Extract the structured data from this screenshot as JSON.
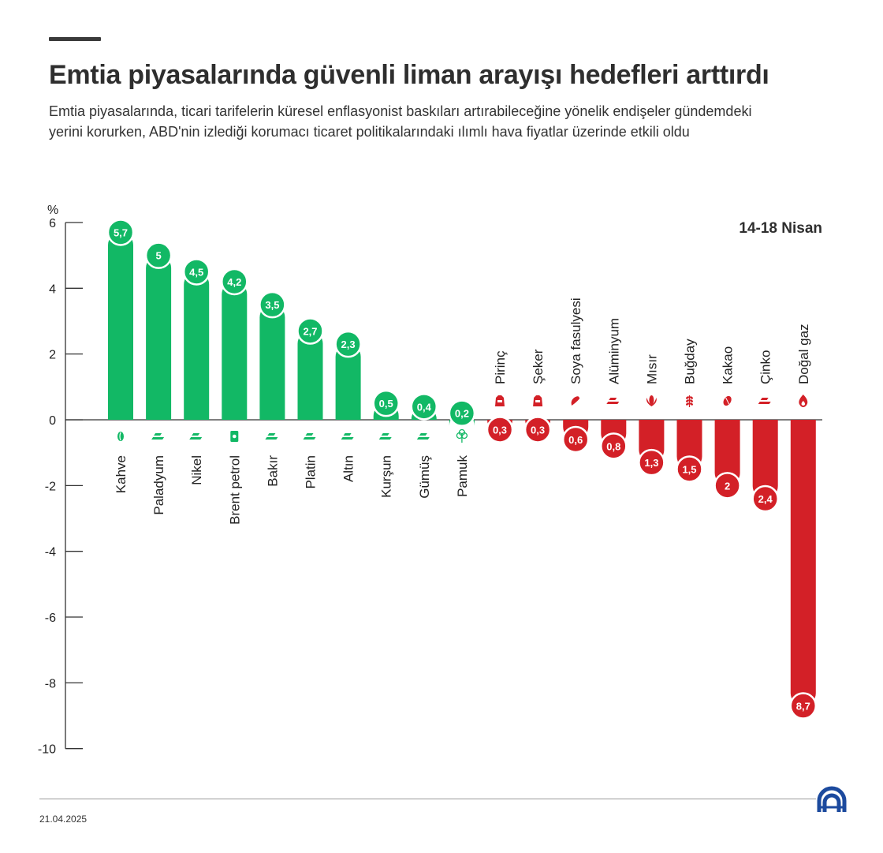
{
  "header": {
    "title": "Emtia piyasalarında güvenli liman arayışı hedefleri arttırdı",
    "subtitle": "Emtia piyasalarında, ticari tarifelerin küresel enflasyonist baskıları artırabileceğine yönelik endişeler gündemdeki yerini korurken, ABD'nin izlediği korumacı ticaret politikalarındaki ılımlı hava fiyatlar üzerinde etkili oldu"
  },
  "chart_data": {
    "type": "bar",
    "title": "Emtia piyasalarında güvenli liman arayışı hedefleri arttırdı",
    "period_label": "14-18 Nisan",
    "ylabel": "%",
    "ylim": [
      -10,
      6
    ],
    "yticks": [
      6,
      4,
      2,
      0,
      -2,
      -4,
      -6,
      -8,
      -10
    ],
    "grid": false,
    "colors": {
      "positive": "#12b865",
      "negative": "#d32027"
    },
    "categories": [
      "Kahve",
      "Paladyum",
      "Nikel",
      "Brent petrol",
      "Bakır",
      "Platin",
      "Altın",
      "Kurşun",
      "Gümüş",
      "Pamuk",
      "Pirinç",
      "Şeker",
      "Soya fasulyesi",
      "Alüminyum",
      "Mısır",
      "Buğday",
      "Kakao",
      "Çinko",
      "Doğal gaz"
    ],
    "values": [
      5.7,
      5,
      4.5,
      4.2,
      3.5,
      2.7,
      2.3,
      0.5,
      0.4,
      0.2,
      -0.3,
      -0.3,
      -0.6,
      -0.8,
      -1.3,
      -1.5,
      -2,
      -2.4,
      -8.7
    ],
    "value_labels": [
      "5,7",
      "5",
      "4,5",
      "4,2",
      "3,5",
      "2,7",
      "2,3",
      "0,5",
      "0,4",
      "0,2",
      "0,3",
      "0,3",
      "0,6",
      "0,8",
      "1,3",
      "1,5",
      "2",
      "2,4",
      "8,7"
    ],
    "icons": [
      "coffee-bean-icon",
      "metal-bars-icon",
      "metal-bars-icon",
      "oil-barrel-icon",
      "metal-bars-icon",
      "metal-bars-icon",
      "metal-bars-icon",
      "metal-bars-icon",
      "metal-bars-icon",
      "cotton-icon",
      "rice-sack-icon",
      "sugar-sack-icon",
      "soybean-icon",
      "metal-bars-icon",
      "corn-icon",
      "wheat-icon",
      "cocoa-icon",
      "metal-bars-icon",
      "flame-icon"
    ]
  },
  "footer": {
    "date": "21.04.2025"
  }
}
